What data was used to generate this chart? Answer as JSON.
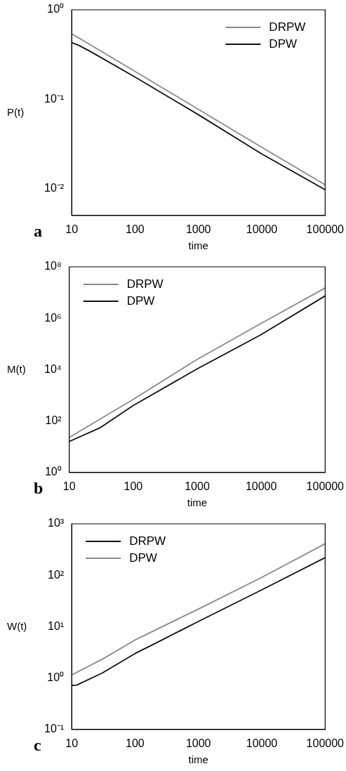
{
  "chart_data": [
    {
      "type": "line",
      "xlabel": "time",
      "ylabel": "P(t)",
      "log": "xy",
      "legend": "top right",
      "marker": "none",
      "line_style": "solid",
      "grid": false,
      "annotations": [
        "a"
      ],
      "xlim": [
        10,
        100000
      ],
      "xticks": [
        10,
        100,
        1000,
        10000,
        100000
      ],
      "ylim": [
        0.005,
        1
      ],
      "yticks": [
        {
          "value": 0.01,
          "label": "10⁻²"
        },
        {
          "value": 0.1,
          "label": "10⁻¹"
        },
        {
          "value": 1,
          "label": "10⁰"
        }
      ],
      "series": [
        {
          "name": "DRPW",
          "color": "#8a8a8a",
          "x": [
            10,
            100,
            1000,
            10000,
            100000
          ],
          "values": [
            0.54,
            0.204,
            0.077,
            0.029,
            0.011
          ]
        },
        {
          "name": "DPW",
          "color": "#111111",
          "x": [
            10,
            13,
            20,
            100,
            1000,
            10000,
            100000
          ],
          "values": [
            0.43,
            0.4,
            0.34,
            0.177,
            0.067,
            0.0244,
            0.0097
          ]
        }
      ]
    },
    {
      "type": "line",
      "xlabel": "time",
      "ylabel": "M(t)",
      "log": "xy",
      "legend": "top left",
      "marker": "none",
      "line_style": "solid",
      "grid": false,
      "annotations": [
        "b"
      ],
      "xlim": [
        10,
        100000
      ],
      "xticks": [
        10,
        100,
        1000,
        10000,
        100000
      ],
      "ylim": [
        1,
        100000000
      ],
      "yticks": [
        {
          "value": 1,
          "label": "10⁰"
        },
        {
          "value": 100,
          "label": "10²"
        },
        {
          "value": 10000,
          "label": "10⁴"
        },
        {
          "value": 1000000,
          "label": "10⁶"
        },
        {
          "value": 100000000,
          "label": "10⁸"
        }
      ],
      "series": [
        {
          "name": "DRPW",
          "color": "#8a8a8a",
          "x": [
            10,
            100,
            1000,
            10000,
            100000
          ],
          "values": [
            23,
            700,
            25000,
            630000,
            15000000
          ]
        },
        {
          "name": "DPW",
          "color": "#111111",
          "x": [
            10,
            30,
            100,
            1000,
            10000,
            100000
          ],
          "values": [
            16,
            54,
            400,
            10700,
            230000,
            7400000
          ]
        }
      ]
    },
    {
      "type": "line",
      "xlabel": "time",
      "ylabel": "W(t)",
      "log": "xy",
      "legend": "top left",
      "marker": "none",
      "line_style": "solid",
      "grid": false,
      "annotations": [
        "c"
      ],
      "xlim": [
        10,
        100000
      ],
      "xticks": [
        10,
        100,
        1000,
        10000,
        100000
      ],
      "ylim": [
        0.1,
        1000
      ],
      "yticks": [
        {
          "value": 0.1,
          "label": "10⁻¹"
        },
        {
          "value": 1,
          "label": "10⁰"
        },
        {
          "value": 10,
          "label": "10¹"
        },
        {
          "value": 100,
          "label": "10²"
        },
        {
          "value": 1000,
          "label": "10³"
        }
      ],
      "series": [
        {
          "name": "DRPW",
          "color": "#111111",
          "x": [
            10,
            12,
            30,
            100,
            200,
            1000,
            10000,
            100000
          ],
          "values": [
            0.72,
            0.73,
            1.24,
            3.0,
            4.6,
            12.6,
            52,
            220
          ]
        },
        {
          "name": "DPW",
          "color": "#8a8a8a",
          "x": [
            10,
            30,
            100,
            1000,
            10000,
            100000
          ],
          "values": [
            1.15,
            2.3,
            5.5,
            22,
            91,
            410
          ]
        }
      ]
    }
  ]
}
